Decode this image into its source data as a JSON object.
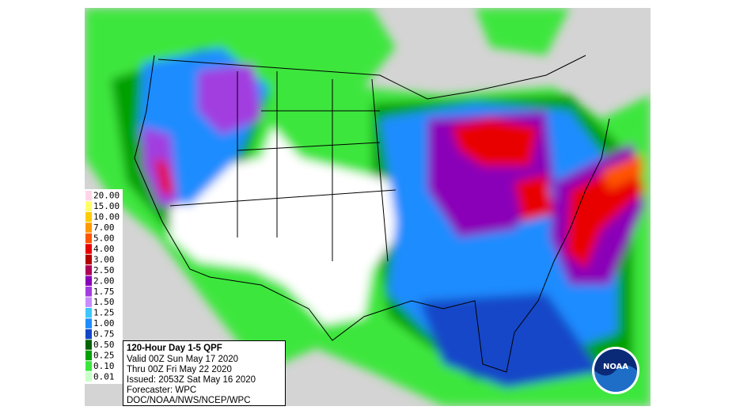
{
  "legend": {
    "items": [
      {
        "label": "20.00",
        "color": "#ffd6e8"
      },
      {
        "label": "15.00",
        "color": "#ffff66"
      },
      {
        "label": "10.00",
        "color": "#ffcc00"
      },
      {
        "label": "7.00",
        "color": "#ff9900"
      },
      {
        "label": "5.00",
        "color": "#ff5500"
      },
      {
        "label": "4.00",
        "color": "#e80000"
      },
      {
        "label": "3.00",
        "color": "#b40000"
      },
      {
        "label": "2.50",
        "color": "#b0005a"
      },
      {
        "label": "2.00",
        "color": "#8a00b8"
      },
      {
        "label": "1.75",
        "color": "#a23ce0"
      },
      {
        "label": "1.50",
        "color": "#c88cff"
      },
      {
        "label": "1.25",
        "color": "#3cc8ff"
      },
      {
        "label": "1.00",
        "color": "#1e8cff"
      },
      {
        "label": "0.75",
        "color": "#1446c8"
      },
      {
        "label": "0.50",
        "color": "#006400"
      },
      {
        "label": "0.25",
        "color": "#00a000"
      },
      {
        "label": "0.10",
        "color": "#3ce63c"
      },
      {
        "label": "0.01",
        "color": "#c8ffc8"
      }
    ]
  },
  "info": {
    "title": "120-Hour Day 1-5 QPF",
    "lines": [
      "Valid 00Z Sun May 17 2020",
      "Thru 00Z Fri May 22 2020",
      "Issued: 2053Z Sat May 16 2020",
      "Forecaster: WPC",
      "DOC/NOAA/NWS/NCEP/WPC"
    ]
  },
  "logo": {
    "text": "NOAA"
  }
}
